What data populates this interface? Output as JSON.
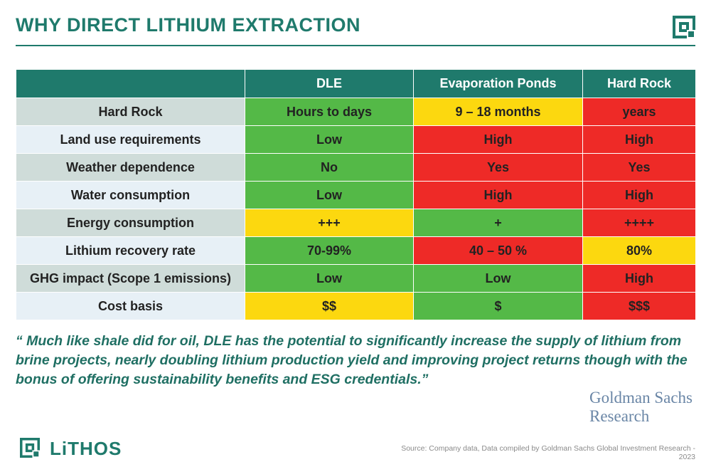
{
  "title": "WHY DIRECT LITHIUM EXTRACTION",
  "table": {
    "columns": [
      "",
      "DLE",
      "Evaporation Ponds",
      "Hard Rock"
    ],
    "rows": [
      {
        "label": "Hard Rock",
        "cells": [
          {
            "text": "Hours to days",
            "status": "green"
          },
          {
            "text": "9 – 18 months",
            "status": "yellow"
          },
          {
            "text": "years",
            "status": "red"
          }
        ]
      },
      {
        "label": "Land use requirements",
        "cells": [
          {
            "text": "Low",
            "status": "green"
          },
          {
            "text": "High",
            "status": "red"
          },
          {
            "text": "High",
            "status": "red"
          }
        ]
      },
      {
        "label": "Weather dependence",
        "cells": [
          {
            "text": "No",
            "status": "green"
          },
          {
            "text": "Yes",
            "status": "red"
          },
          {
            "text": "Yes",
            "status": "red"
          }
        ]
      },
      {
        "label": "Water consumption",
        "cells": [
          {
            "text": "Low",
            "status": "green"
          },
          {
            "text": "High",
            "status": "red"
          },
          {
            "text": "High",
            "status": "red"
          }
        ]
      },
      {
        "label": "Energy consumption",
        "cells": [
          {
            "text": "+++",
            "status": "yellow"
          },
          {
            "text": "+",
            "status": "green"
          },
          {
            "text": "++++",
            "status": "red"
          }
        ]
      },
      {
        "label": "Lithium recovery rate",
        "cells": [
          {
            "text": "70-99%",
            "status": "green"
          },
          {
            "text": "40 – 50 %",
            "status": "red"
          },
          {
            "text": "80%",
            "status": "yellow"
          }
        ]
      },
      {
        "label": "GHG impact (Scope 1 emissions)",
        "cells": [
          {
            "text": "Low",
            "status": "green"
          },
          {
            "text": "Low",
            "status": "green"
          },
          {
            "text": "High",
            "status": "red"
          }
        ]
      },
      {
        "label": "Cost basis",
        "cells": [
          {
            "text": "$$",
            "status": "yellow"
          },
          {
            "text": "$",
            "status": "green"
          },
          {
            "text": "$$$",
            "status": "red"
          }
        ]
      }
    ]
  },
  "quote": "“ Much like shale did for oil, DLE has the potential to significantly increase the supply of lithium from brine projects, nearly doubling lithium production yield and improving project returns though with the bonus of offering sustainability benefits and ESG credentials.”",
  "attribution": {
    "line1": "Goldman Sachs",
    "line2": "Research"
  },
  "brand": "LiTHOS",
  "source": "Source: Company data, Data compiled by Goldman Sachs Global Investment Research - 2023",
  "colors": {
    "brand": "#1f7a6c",
    "green": "#54b947",
    "yellow": "#fcd80f",
    "red": "#ee2a27"
  },
  "icons": {
    "corner": "lithos-mark-icon",
    "brand": "lithos-logo-icon"
  }
}
